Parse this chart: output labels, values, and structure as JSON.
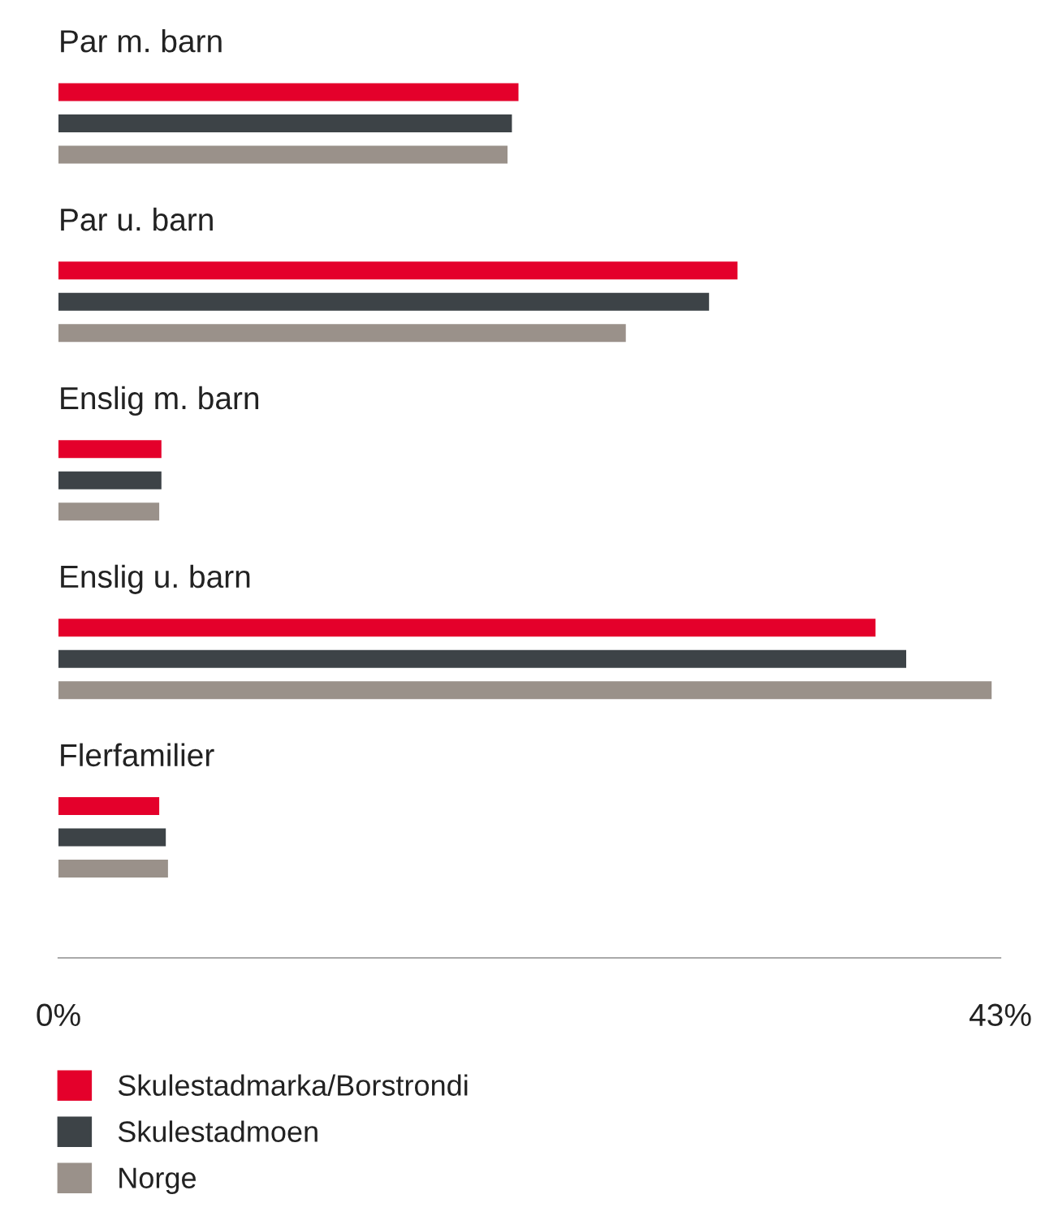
{
  "chart_data": {
    "type": "bar",
    "orientation": "horizontal",
    "categories": [
      "Par m. barn",
      "Par u. barn",
      "Enslig m. barn",
      "Enslig u. barn",
      "Flerfamilier"
    ],
    "series": [
      {
        "name": "Skulestadmarka/Borstrondi",
        "color": "#e4002b",
        "values": [
          21.0,
          31.0,
          4.7,
          37.3,
          4.6
        ]
      },
      {
        "name": "Skulestadmoen",
        "color": "#3d4347",
        "values": [
          20.7,
          29.7,
          4.7,
          38.7,
          4.9
        ]
      },
      {
        "name": "Norge",
        "color": "#9a918a",
        "values": [
          20.5,
          25.9,
          4.6,
          42.6,
          5.0
        ]
      }
    ],
    "xlim": [
      0,
      43
    ],
    "xticks": [
      {
        "value": 0,
        "label": "0%"
      },
      {
        "value": 43,
        "label": "43%"
      }
    ],
    "grid": false,
    "legend": "bottom"
  }
}
